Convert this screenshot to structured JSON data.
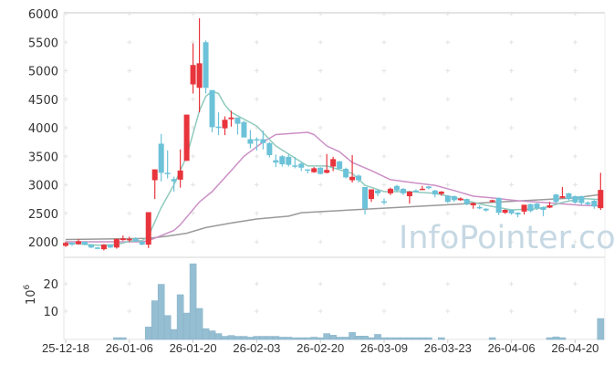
{
  "chart_data": {
    "type": "candlestick",
    "title": "",
    "watermark": "InfoPointer.com",
    "price_axis": {
      "ticks": [
        2000,
        2500,
        3000,
        3500,
        4000,
        4500,
        5000,
        5500,
        6000
      ],
      "ylim": [
        1720,
        6000
      ]
    },
    "volume_axis": {
      "label": "10^6",
      "label_base": "10",
      "label_exp": "6",
      "ticks": [
        10,
        20
      ],
      "ylim": [
        0,
        29
      ]
    },
    "x_ticks": [
      {
        "index": 0,
        "label": "25-12-18"
      },
      {
        "index": 10,
        "label": "26-01-06"
      },
      {
        "index": 20,
        "label": "26-01-20"
      },
      {
        "index": 30,
        "label": "26-02-03"
      },
      {
        "index": 40,
        "label": "26-02-20"
      },
      {
        "index": 50,
        "label": "26-03-09"
      },
      {
        "index": 60,
        "label": "26-03-23"
      },
      {
        "index": 70,
        "label": "26-04-06"
      },
      {
        "index": 80,
        "label": "26-04-20"
      }
    ],
    "colors": {
      "up": "#e8343c",
      "down": "#6cc2d8",
      "ma5": "#8fcabd",
      "ma20": "#cc8fc6",
      "ma60": "#9a9a9a",
      "volume": "#96bed2"
    },
    "ohlc": [
      [
        1930,
        2000,
        1910,
        1980
      ],
      [
        1980,
        2000,
        1930,
        1950
      ],
      [
        1960,
        2050,
        1950,
        2010
      ],
      [
        2000,
        2010,
        1940,
        1950
      ],
      [
        1950,
        1960,
        1890,
        1900
      ],
      [
        1900,
        1910,
        1870,
        1880
      ],
      [
        1870,
        1960,
        1850,
        1950
      ],
      [
        1950,
        1960,
        1890,
        1900
      ],
      [
        1900,
        2060,
        1880,
        2050
      ],
      [
        2030,
        2110,
        2020,
        2060
      ],
      [
        2040,
        2090,
        2000,
        2050
      ],
      [
        2060,
        2080,
        2010,
        2010
      ],
      [
        2000,
        2010,
        1940,
        1950
      ],
      [
        1950,
        2520,
        1890,
        2520
      ],
      [
        3080,
        3270,
        2750,
        3270
      ],
      [
        3720,
        3890,
        3060,
        3210
      ],
      [
        3210,
        3600,
        3110,
        3200
      ],
      [
        3100,
        3140,
        2880,
        3060
      ],
      [
        3090,
        3620,
        2950,
        3250
      ],
      [
        3420,
        4230,
        3420,
        4230
      ],
      [
        4760,
        5480,
        4600,
        5100
      ],
      [
        4700,
        5920,
        4270,
        5130
      ],
      [
        5500,
        5530,
        4600,
        4700
      ],
      [
        4660,
        4660,
        3920,
        4010
      ],
      [
        4020,
        4270,
        3870,
        4010
      ],
      [
        3990,
        4200,
        3870,
        4140
      ],
      [
        4150,
        4300,
        4020,
        4180
      ],
      [
        4180,
        4180,
        3880,
        4070
      ],
      [
        4100,
        4120,
        3830,
        3830
      ],
      [
        3800,
        3960,
        3640,
        3720
      ],
      [
        3800,
        3830,
        3600,
        3790
      ],
      [
        3800,
        3950,
        3620,
        3730
      ],
      [
        3730,
        3750,
        3480,
        3520
      ],
      [
        3430,
        3530,
        3310,
        3390
      ],
      [
        3500,
        3520,
        3320,
        3360
      ],
      [
        3490,
        3530,
        3320,
        3350
      ],
      [
        3340,
        3490,
        3290,
        3330
      ],
      [
        3370,
        3400,
        3240,
        3300
      ],
      [
        3270,
        3270,
        3200,
        3250
      ],
      [
        3220,
        3310,
        3210,
        3290
      ],
      [
        3300,
        3310,
        3180,
        3190
      ],
      [
        3210,
        3540,
        3200,
        3260
      ],
      [
        3320,
        3490,
        3240,
        3450
      ],
      [
        3410,
        3420,
        3280,
        3280
      ],
      [
        3280,
        3300,
        3110,
        3130
      ],
      [
        3080,
        3520,
        3040,
        3140
      ],
      [
        3160,
        3180,
        3040,
        3080
      ],
      [
        2960,
        2960,
        2480,
        2580
      ],
      [
        2750,
        2920,
        2700,
        2920
      ],
      [
        2900,
        2910,
        2800,
        2850
      ],
      [
        2710,
        2760,
        2650,
        2700
      ],
      [
        2850,
        2950,
        2820,
        2930
      ],
      [
        2980,
        3000,
        2870,
        2900
      ],
      [
        2930,
        2940,
        2820,
        2850
      ],
      [
        2800,
        2890,
        2670,
        2880
      ],
      [
        2900,
        2920,
        2870,
        2890
      ],
      [
        2920,
        2980,
        2910,
        2930
      ],
      [
        2970,
        2980,
        2920,
        2940
      ],
      [
        2900,
        2910,
        2780,
        2830
      ],
      [
        2840,
        2890,
        2810,
        2880
      ],
      [
        2810,
        2820,
        2680,
        2700
      ],
      [
        2800,
        2810,
        2700,
        2730
      ],
      [
        2730,
        2780,
        2720,
        2760
      ],
      [
        2750,
        2760,
        2640,
        2660
      ],
      [
        2640,
        2690,
        2580,
        2680
      ],
      [
        2610,
        2640,
        2570,
        2590
      ],
      [
        2580,
        2590,
        2530,
        2550
      ],
      [
        2700,
        2740,
        2690,
        2730
      ],
      [
        2770,
        2780,
        2470,
        2510
      ],
      [
        2510,
        2570,
        2490,
        2560
      ],
      [
        2560,
        2570,
        2480,
        2500
      ],
      [
        2510,
        2520,
        2430,
        2480
      ],
      [
        2530,
        2650,
        2480,
        2650
      ],
      [
        2660,
        2670,
        2520,
        2540
      ],
      [
        2670,
        2680,
        2560,
        2590
      ],
      [
        2610,
        2620,
        2450,
        2560
      ],
      [
        2600,
        2700,
        2590,
        2640
      ],
      [
        2830,
        2840,
        2680,
        2700
      ],
      [
        2770,
        2960,
        2760,
        2800
      ],
      [
        2850,
        2860,
        2730,
        2750
      ],
      [
        2800,
        2810,
        2670,
        2690
      ],
      [
        2800,
        2810,
        2650,
        2680
      ],
      [
        2690,
        2710,
        2640,
        2660
      ],
      [
        2720,
        2750,
        2580,
        2620
      ],
      [
        2590,
        3210,
        2560,
        2910
      ]
    ],
    "volume": [
      0.1,
      0.1,
      0.1,
      0.1,
      0.1,
      0.1,
      0.1,
      0.1,
      0.3,
      0.3,
      0.1,
      0.1,
      0.1,
      4.2,
      13.8,
      19.8,
      8.4,
      3.3,
      16.0,
      9.3,
      27.3,
      11.0,
      3.6,
      2.8,
      1.8,
      0.8,
      1.1,
      0.8,
      0.8,
      0.5,
      0.8,
      0.8,
      0.8,
      0.8,
      0.5,
      0.5,
      0.3,
      0.3,
      0.3,
      0.5,
      0.3,
      1.8,
      1.2,
      0.5,
      0.5,
      2.2,
      0.9,
      0.9,
      0.3,
      1.5,
      0.3,
      0.3,
      0.3,
      0.3,
      0.3,
      0.3,
      0.3,
      0.3,
      0.1,
      0.3,
      0.1,
      0.1,
      0.1,
      0.1,
      0.1,
      0.1,
      0.1,
      0.3,
      0.1,
      0.1,
      0.1,
      0.1,
      0.1,
      0.1,
      0.1,
      0.1,
      0.3,
      0.6,
      0.3,
      0.1,
      0.1,
      0.1,
      0.1,
      0.1,
      7.3
    ],
    "moving_averages": {
      "ma5": [
        [
          0,
          1980
        ],
        [
          5,
          1940
        ],
        [
          8,
          1950
        ],
        [
          10,
          2010
        ],
        [
          12,
          2020
        ],
        [
          13,
          2100
        ],
        [
          15,
          2600
        ],
        [
          17,
          3000
        ],
        [
          19,
          3500
        ],
        [
          21,
          4300
        ],
        [
          22,
          4550
        ],
        [
          23,
          4640
        ],
        [
          24,
          4600
        ],
        [
          25,
          4400
        ],
        [
          26,
          4270
        ],
        [
          30,
          4030
        ],
        [
          33,
          3680
        ],
        [
          38,
          3330
        ],
        [
          41,
          3330
        ],
        [
          45,
          3200
        ],
        [
          47,
          2990
        ],
        [
          50,
          2880
        ],
        [
          54,
          2880
        ],
        [
          58,
          2850
        ],
        [
          61,
          2780
        ],
        [
          63,
          2720
        ],
        [
          66,
          2640
        ],
        [
          70,
          2560
        ],
        [
          74,
          2580
        ],
        [
          76,
          2620
        ],
        [
          78,
          2690
        ],
        [
          81,
          2760
        ],
        [
          84,
          2740
        ]
      ],
      "ma20": [
        [
          0,
          2000
        ],
        [
          12,
          2000
        ],
        [
          13,
          2020
        ],
        [
          17,
          2200
        ],
        [
          18,
          2300
        ],
        [
          21,
          2700
        ],
        [
          23,
          2880
        ],
        [
          26,
          3250
        ],
        [
          28,
          3500
        ],
        [
          31,
          3750
        ],
        [
          33,
          3880
        ],
        [
          38,
          3920
        ],
        [
          39,
          3880
        ],
        [
          41,
          3680
        ],
        [
          43,
          3580
        ],
        [
          45,
          3390
        ],
        [
          48,
          3250
        ],
        [
          51,
          3090
        ],
        [
          55,
          3030
        ],
        [
          58,
          2990
        ],
        [
          61,
          2900
        ],
        [
          64,
          2800
        ],
        [
          67,
          2770
        ],
        [
          71,
          2720
        ],
        [
          75,
          2690
        ],
        [
          81,
          2640
        ],
        [
          84,
          2630
        ]
      ],
      "ma60": [
        [
          0,
          2040
        ],
        [
          13,
          2060
        ],
        [
          16,
          2100
        ],
        [
          19,
          2150
        ],
        [
          22,
          2250
        ],
        [
          26,
          2330
        ],
        [
          30,
          2400
        ],
        [
          35,
          2450
        ],
        [
          37,
          2510
        ],
        [
          45,
          2560
        ],
        [
          50,
          2590
        ],
        [
          55,
          2620
        ],
        [
          60,
          2650
        ],
        [
          65,
          2680
        ],
        [
          70,
          2710
        ],
        [
          75,
          2740
        ],
        [
          80,
          2770
        ],
        [
          84,
          2830
        ]
      ]
    }
  }
}
